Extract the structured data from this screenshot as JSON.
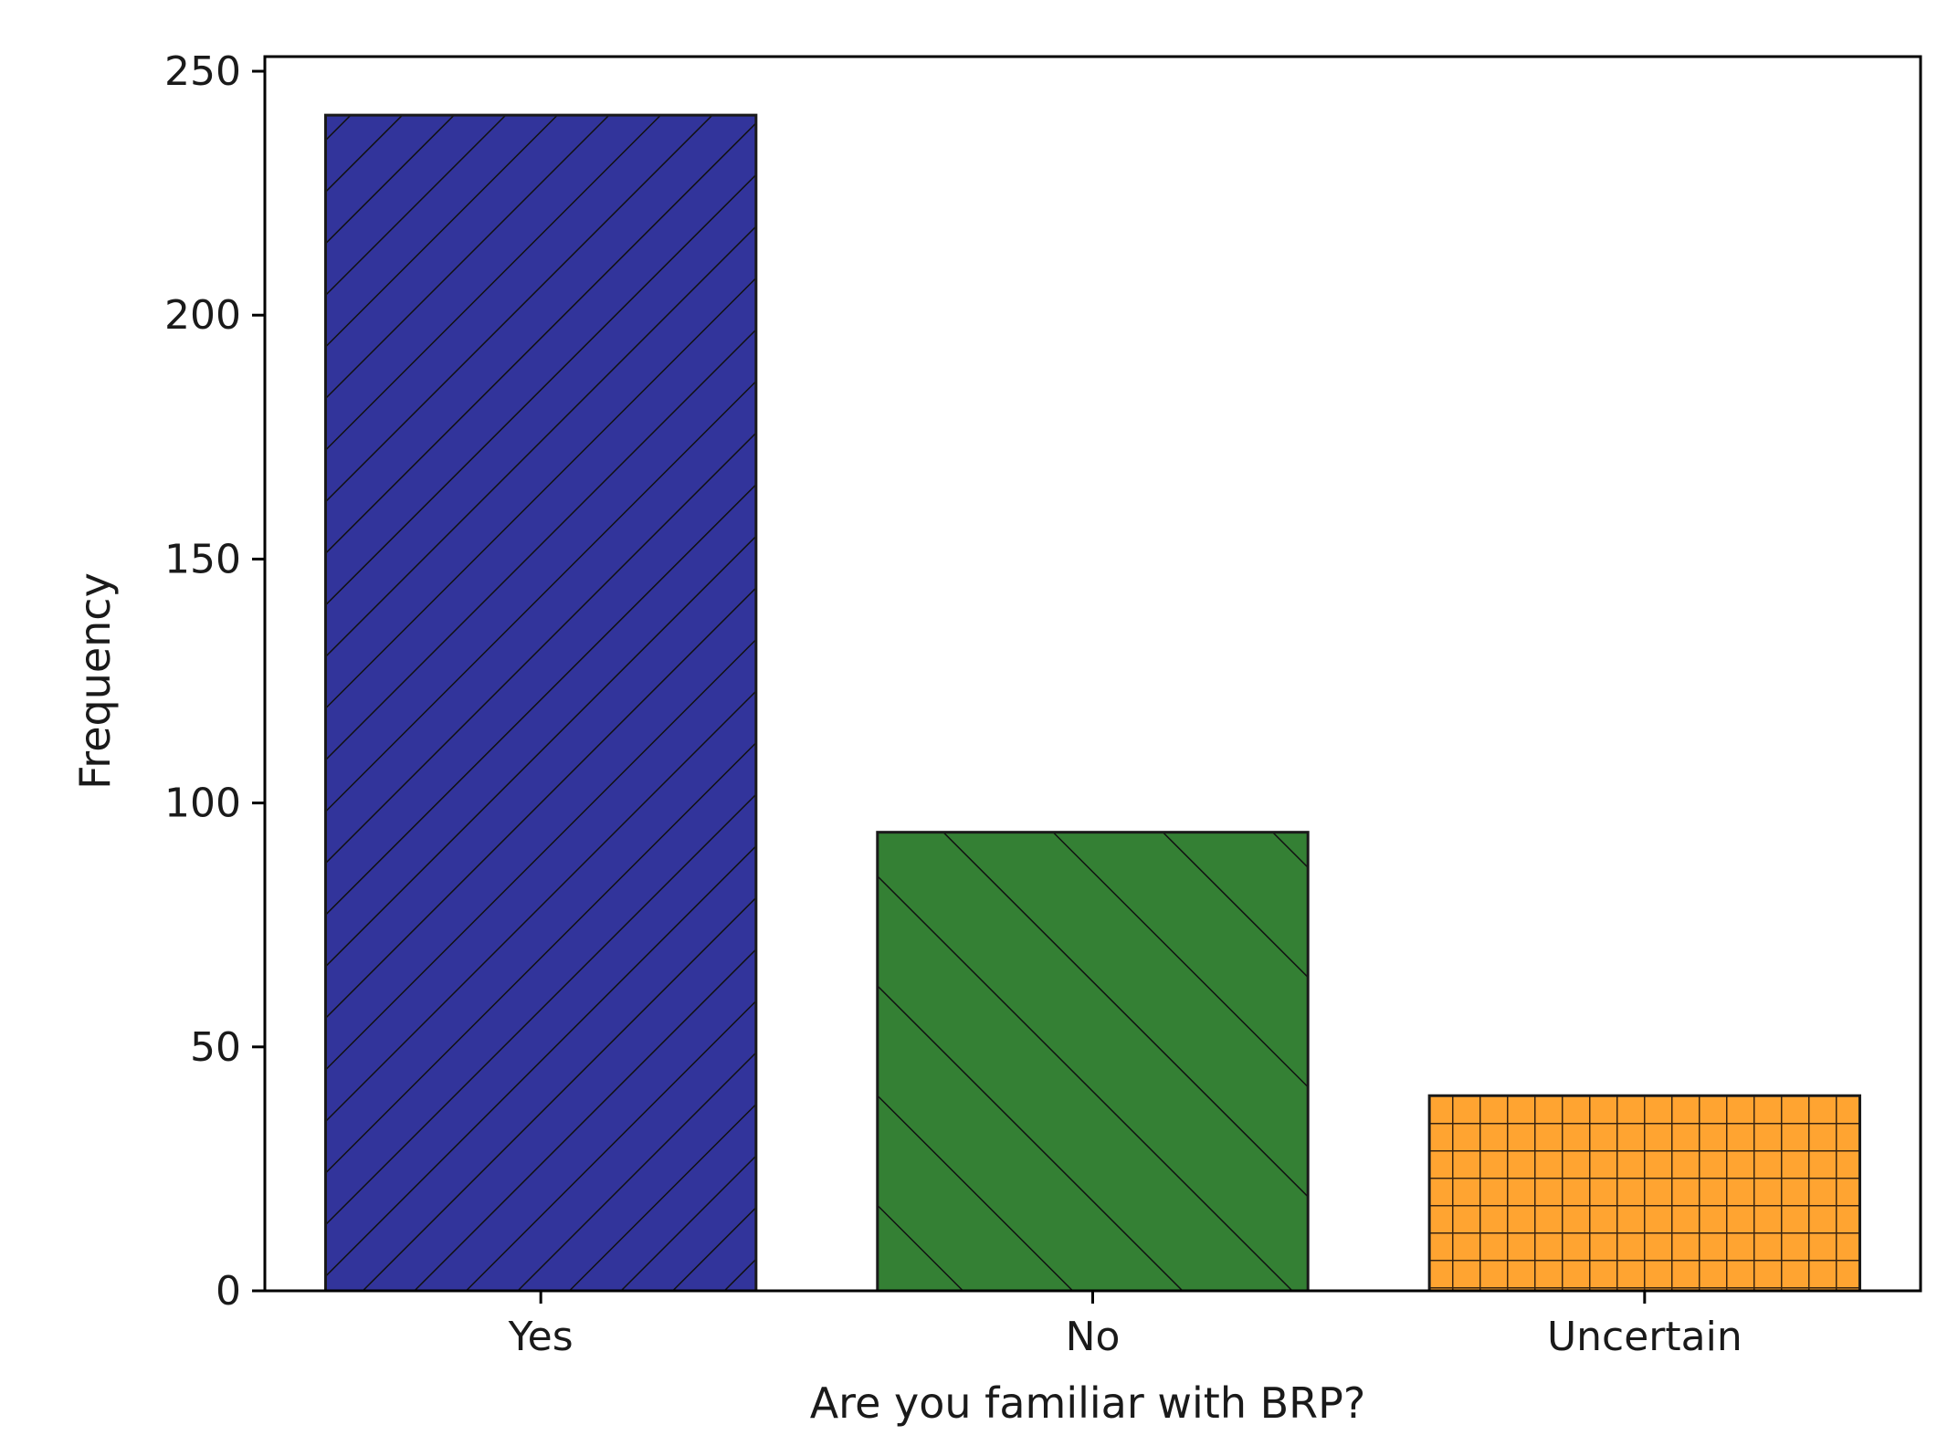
{
  "chart_data": {
    "type": "bar",
    "title": "",
    "xlabel": "Are you familiar with BRP?",
    "ylabel": "Frequency",
    "categories": [
      "Yes",
      "No",
      "Uncertain"
    ],
    "values": [
      241,
      94,
      40
    ],
    "ylim": [
      0,
      253
    ],
    "yticks": [
      0,
      50,
      100,
      150,
      200,
      250
    ],
    "grid": false,
    "legend": "none",
    "bars": [
      {
        "category": "Yes",
        "color": "#32349b",
        "hatch": "diagonal-forward-dense"
      },
      {
        "category": "No",
        "color": "#348034",
        "hatch": "diagonal-backward-sparse"
      },
      {
        "category": "Uncertain",
        "color": "#ffa431",
        "hatch": "grid-dense"
      }
    ]
  }
}
